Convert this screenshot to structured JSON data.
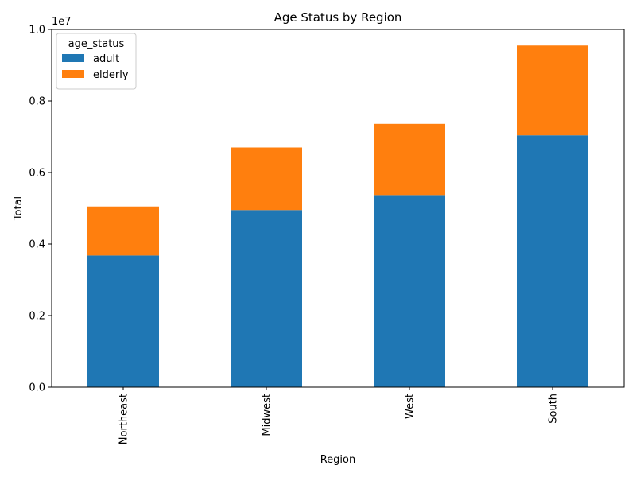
{
  "chart_data": {
    "type": "bar",
    "stacked": true,
    "title": "Age Status by Region",
    "xlabel": "Region",
    "ylabel": "Total",
    "y_offset_label": "1e7",
    "ylim": [
      0,
      1.0
    ],
    "y_ticks": [
      "0.0",
      "0.2",
      "0.4",
      "0.6",
      "0.8",
      "1.0"
    ],
    "categories": [
      "Northeast",
      "Midwest",
      "West",
      "South"
    ],
    "series": [
      {
        "name": "adult",
        "color": "#1f77b4",
        "values": [
          0.368,
          0.495,
          0.537,
          0.704
        ]
      },
      {
        "name": "elderly",
        "color": "#ff7f0e",
        "values": [
          0.137,
          0.175,
          0.199,
          0.251
        ]
      }
    ],
    "legend": {
      "title": "age_status",
      "placement": "top-left"
    },
    "grid": false
  }
}
